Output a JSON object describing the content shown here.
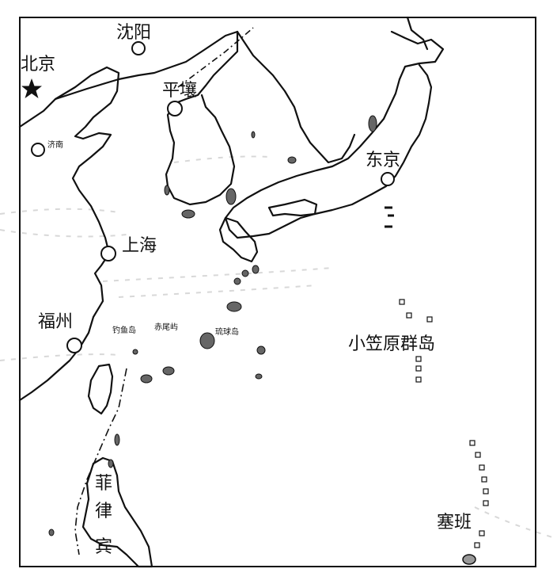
{
  "map": {
    "cities": {
      "shenyang": "沈阳",
      "beijing": "北京",
      "pyongyang": "平壤",
      "jinan": "济南",
      "shanghai": "上海",
      "fuzhou": "福州",
      "tokyo": "东京"
    },
    "islands": {
      "diaoyu": "钓鱼岛",
      "chiwei": "赤尾屿",
      "ryukyu": "琉球岛",
      "ogasawara": "小笠原群岛",
      "saipan": "塞班"
    },
    "region": {
      "philippines_1": "菲",
      "philippines_2": "律",
      "philippines_3": "宾"
    },
    "icons": [
      "capital-star-icon",
      "city-circle-icon"
    ],
    "colors": {
      "ink": "#111111",
      "island_fill": "#666666",
      "background": "#ffffff"
    }
  }
}
